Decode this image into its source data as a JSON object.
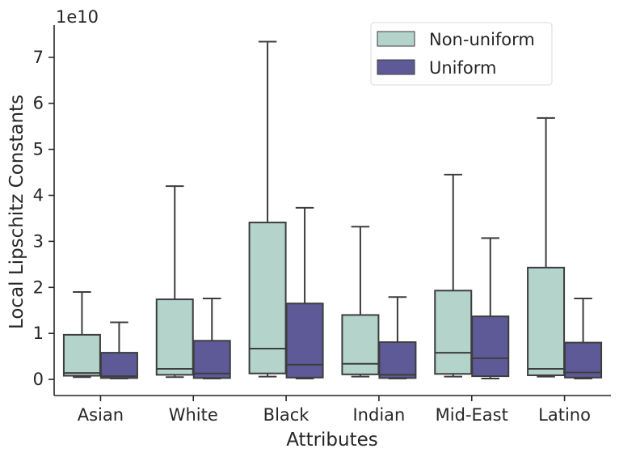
{
  "chart_data": {
    "type": "box",
    "xlabel": "Attributes",
    "ylabel": "Local Lipschitz Constants",
    "y_scale_label": "1e10",
    "y_unit_multiplier": 10000000000.0,
    "ylim": [
      -0.35,
      7.7
    ],
    "yticks": [
      0,
      1,
      2,
      3,
      4,
      5,
      6,
      7
    ],
    "ytick_labels": [
      "0",
      "1",
      "2",
      "3",
      "4",
      "5",
      "6",
      "7"
    ],
    "categories": [
      "Asian",
      "White",
      "Black",
      "Indian",
      "Mid-East",
      "Latino"
    ],
    "legend": {
      "position": "top-right",
      "entries": [
        "Non-uniform",
        "Uniform"
      ]
    },
    "series": [
      {
        "name": "Non-uniform",
        "color": "#b3d3cb",
        "boxes": [
          {
            "whislo": 0.05,
            "q1": 0.08,
            "med": 0.14,
            "q3": 0.97,
            "whishi": 1.9
          },
          {
            "whislo": 0.05,
            "q1": 0.1,
            "med": 0.23,
            "q3": 1.74,
            "whishi": 4.2
          },
          {
            "whislo": 0.06,
            "q1": 0.13,
            "med": 0.67,
            "q3": 3.41,
            "whishi": 7.34
          },
          {
            "whislo": 0.06,
            "q1": 0.11,
            "med": 0.34,
            "q3": 1.4,
            "whishi": 3.32
          },
          {
            "whislo": 0.06,
            "q1": 0.12,
            "med": 0.58,
            "q3": 1.93,
            "whishi": 4.45
          },
          {
            "whislo": 0.06,
            "q1": 0.09,
            "med": 0.23,
            "q3": 2.43,
            "whishi": 5.68
          }
        ]
      },
      {
        "name": "Uniform",
        "color": "#5e5a98",
        "boxes": [
          {
            "whislo": 0.02,
            "q1": 0.03,
            "med": 0.07,
            "q3": 0.58,
            "whishi": 1.24
          },
          {
            "whislo": 0.02,
            "q1": 0.03,
            "med": 0.13,
            "q3": 0.84,
            "whishi": 1.76
          },
          {
            "whislo": 0.02,
            "q1": 0.04,
            "med": 0.32,
            "q3": 1.65,
            "whishi": 3.73
          },
          {
            "whislo": 0.02,
            "q1": 0.03,
            "med": 0.1,
            "q3": 0.81,
            "whishi": 1.79
          },
          {
            "whislo": 0.02,
            "q1": 0.07,
            "med": 0.46,
            "q3": 1.37,
            "whishi": 3.07
          },
          {
            "whislo": 0.02,
            "q1": 0.04,
            "med": 0.15,
            "q3": 0.8,
            "whishi": 1.76
          }
        ]
      }
    ]
  }
}
